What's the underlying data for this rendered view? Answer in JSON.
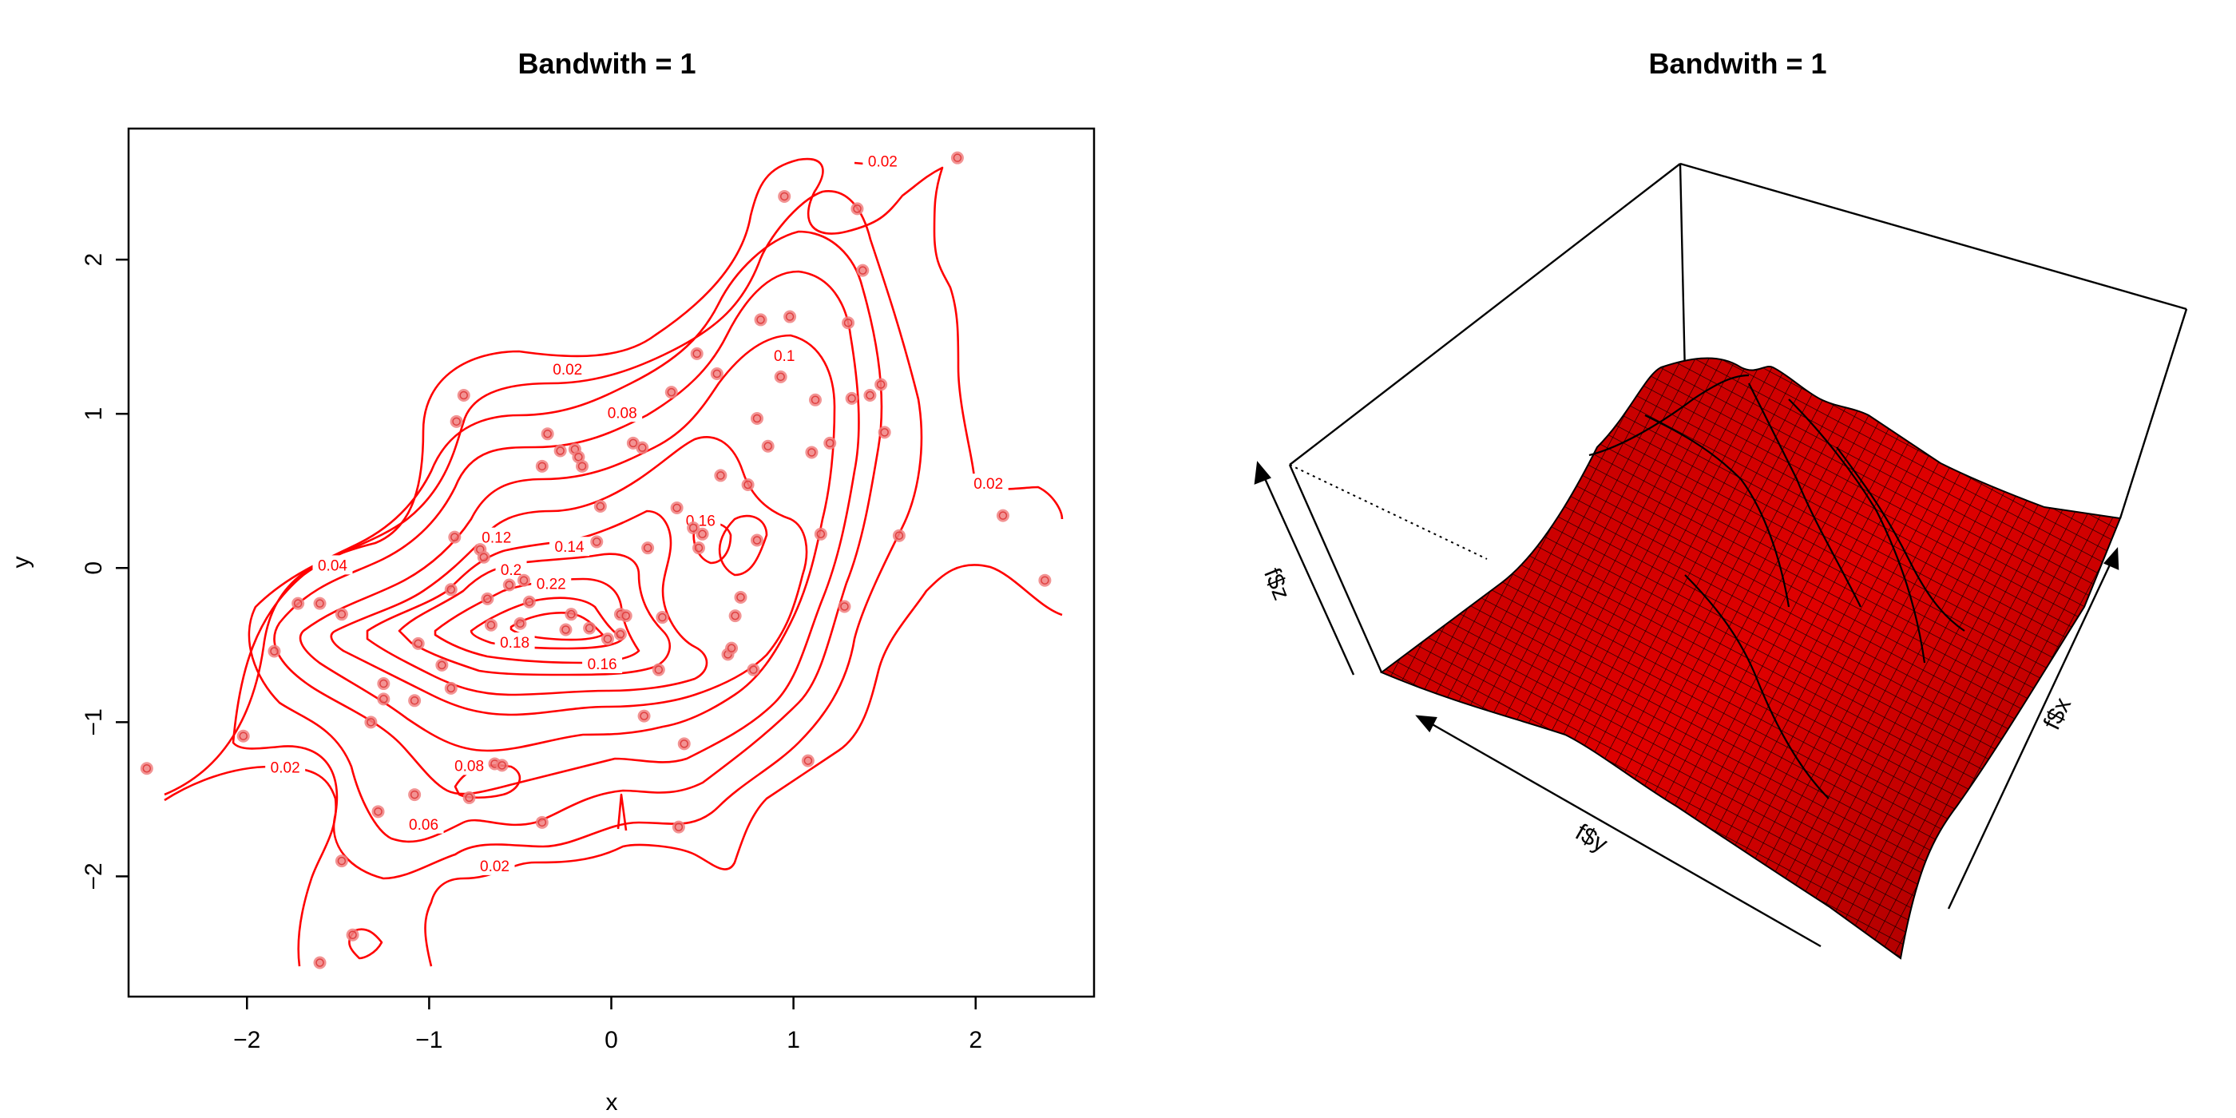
{
  "chart_data": [
    {
      "type": "contour",
      "title": "Bandwith = 1",
      "xlabel": "x",
      "ylabel": "y",
      "xlim": [
        -2.65,
        2.65
      ],
      "ylim": [
        -2.78,
        2.85
      ],
      "xticks": [
        -2,
        -1,
        0,
        1,
        2
      ],
      "yticks": [
        -2,
        -1,
        0,
        1,
        2
      ],
      "xtick_labels": [
        "−2",
        "−1",
        "0",
        "1",
        "2"
      ],
      "ytick_labels": [
        "−2",
        "−1",
        "0",
        "1",
        "2"
      ],
      "line_color": "#ff0000",
      "point_color": "#f08080",
      "contour_levels": [
        0.02,
        0.04,
        0.06,
        0.08,
        0.1,
        0.12,
        0.14,
        0.16,
        0.18,
        0.2,
        0.22
      ],
      "contour_labels": [
        {
          "text": "0.02",
          "x": -0.24,
          "y": 1.29
        },
        {
          "text": "0.08",
          "x": 0.06,
          "y": 1.01
        },
        {
          "text": "0.1",
          "x": 0.95,
          "y": 1.38
        },
        {
          "text": "0.02",
          "x": 1.49,
          "y": 2.64
        },
        {
          "text": "0.02",
          "x": 2.07,
          "y": 0.55
        },
        {
          "text": "0.04",
          "x": -1.53,
          "y": 0.02
        },
        {
          "text": "0.12",
          "x": -0.63,
          "y": 0.2
        },
        {
          "text": "0.14",
          "x": -0.23,
          "y": 0.14
        },
        {
          "text": "0.16",
          "x": 0.49,
          "y": 0.31
        },
        {
          "text": "0.2",
          "x": -0.55,
          "y": -0.01
        },
        {
          "text": "0.22",
          "x": -0.33,
          "y": -0.1
        },
        {
          "text": "0.18",
          "x": -0.53,
          "y": -0.48
        },
        {
          "text": "0.16",
          "x": -0.05,
          "y": -0.62
        },
        {
          "text": "0.08",
          "x": -0.78,
          "y": -1.28
        },
        {
          "text": "0.06",
          "x": -1.03,
          "y": -1.66
        },
        {
          "text": "0.02",
          "x": -1.79,
          "y": -1.29
        },
        {
          "text": "0.02",
          "x": -0.64,
          "y": -1.93
        }
      ],
      "points": [
        [
          -2.55,
          -1.3
        ],
        [
          -2.02,
          -1.09
        ],
        [
          -1.85,
          -0.54
        ],
        [
          -1.6,
          -2.56
        ],
        [
          -1.48,
          -1.9
        ],
        [
          -1.42,
          -2.38
        ],
        [
          -1.48,
          -0.3
        ],
        [
          -1.6,
          -0.23
        ],
        [
          -1.72,
          -0.23
        ],
        [
          -1.32,
          -1.0
        ],
        [
          -1.25,
          -0.75
        ],
        [
          -1.25,
          -0.85
        ],
        [
          -1.28,
          -1.58
        ],
        [
          -1.08,
          -1.47
        ],
        [
          -1.08,
          -0.86
        ],
        [
          -1.06,
          -0.49
        ],
        [
          -0.93,
          -0.63
        ],
        [
          -0.88,
          -0.78
        ],
        [
          -0.88,
          -0.14
        ],
        [
          -0.86,
          0.2
        ],
        [
          -0.85,
          0.95
        ],
        [
          -0.81,
          1.12
        ],
        [
          -0.78,
          -1.49
        ],
        [
          -0.72,
          0.12
        ],
        [
          -0.7,
          0.07
        ],
        [
          -0.68,
          -0.2
        ],
        [
          -0.66,
          -0.37
        ],
        [
          -0.64,
          -1.27
        ],
        [
          -0.6,
          -1.28
        ],
        [
          -0.56,
          -0.11
        ],
        [
          -0.5,
          -0.36
        ],
        [
          -0.48,
          -0.08
        ],
        [
          -0.45,
          -0.22
        ],
        [
          -0.38,
          -1.65
        ],
        [
          -0.38,
          0.66
        ],
        [
          -0.35,
          0.87
        ],
        [
          -0.28,
          0.76
        ],
        [
          -0.25,
          -0.4
        ],
        [
          -0.22,
          -0.3
        ],
        [
          -0.2,
          0.77
        ],
        [
          -0.18,
          0.72
        ],
        [
          -0.16,
          0.66
        ],
        [
          -0.12,
          -0.39
        ],
        [
          -0.08,
          0.17
        ],
        [
          -0.06,
          0.4
        ],
        [
          -0.02,
          -0.46
        ],
        [
          0.05,
          -0.3
        ],
        [
          0.05,
          -0.43
        ],
        [
          0.08,
          -0.31
        ],
        [
          0.12,
          0.81
        ],
        [
          0.17,
          0.78
        ],
        [
          0.18,
          -0.96
        ],
        [
          0.2,
          0.13
        ],
        [
          0.26,
          -0.66
        ],
        [
          0.28,
          -0.32
        ],
        [
          0.33,
          1.14
        ],
        [
          0.36,
          0.39
        ],
        [
          0.37,
          -1.68
        ],
        [
          0.4,
          -1.14
        ],
        [
          0.45,
          0.26
        ],
        [
          0.47,
          1.39
        ],
        [
          0.48,
          0.13
        ],
        [
          0.5,
          0.22
        ],
        [
          0.58,
          1.26
        ],
        [
          0.6,
          0.6
        ],
        [
          0.64,
          -0.56
        ],
        [
          0.66,
          -0.52
        ],
        [
          0.68,
          -0.31
        ],
        [
          0.71,
          -0.19
        ],
        [
          0.75,
          0.54
        ],
        [
          0.78,
          -0.66
        ],
        [
          0.8,
          0.18
        ],
        [
          0.8,
          0.97
        ],
        [
          0.82,
          1.61
        ],
        [
          0.86,
          0.79
        ],
        [
          0.93,
          1.24
        ],
        [
          0.95,
          2.41
        ],
        [
          0.98,
          1.63
        ],
        [
          1.08,
          -1.25
        ],
        [
          1.1,
          0.75
        ],
        [
          1.12,
          1.09
        ],
        [
          1.15,
          0.22
        ],
        [
          1.2,
          0.81
        ],
        [
          1.28,
          -0.25
        ],
        [
          1.3,
          1.59
        ],
        [
          1.32,
          1.1
        ],
        [
          1.35,
          2.33
        ],
        [
          1.38,
          1.93
        ],
        [
          1.42,
          1.12
        ],
        [
          1.48,
          1.19
        ],
        [
          1.5,
          0.88
        ],
        [
          1.58,
          0.21
        ],
        [
          1.9,
          2.66
        ],
        [
          2.15,
          0.34
        ],
        [
          2.38,
          -0.08
        ]
      ]
    },
    {
      "type": "surface",
      "title": "Bandwith = 1",
      "xlabel": "f$x",
      "ylabel": "f$y",
      "zlabel": "f$z",
      "surface_color": "#ee0000",
      "grid_color": "#000000"
    }
  ]
}
